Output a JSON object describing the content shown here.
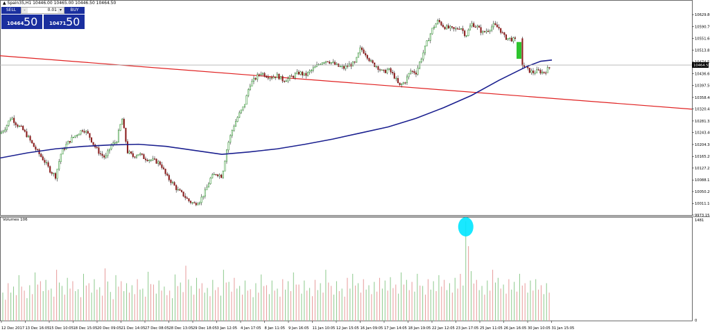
{
  "window_title": "▲ Spain35,H1  10446.00 10465.00 10446.50 10464.50",
  "trade_panel": {
    "sell_label": "SELL",
    "buy_label": "BUY",
    "lot": "0.01",
    "bid_small": "10464",
    "bid_big": "50",
    "ask_small": "10471",
    "ask_big": "50"
  },
  "colors": {
    "bull": "#1d8a1d",
    "bear": "#8a1d1d",
    "ma": "#1a1f8f",
    "trendline": "#e02020",
    "highlight_candle": "#2ec52e",
    "marker": "#00e5ff",
    "price_line": "#b0b0b0",
    "vol_up": "#8cc98c",
    "vol_down": "#e79a9a"
  },
  "chart_data": [
    {
      "type": "candlestick",
      "symbol": "Spain35",
      "timeframe": "H1",
      "ylim": [
        9973.15,
        10668.5
      ],
      "y_ticks": [
        "10629.80",
        "10590.70",
        "10551.60",
        "10513.85",
        "10474.55",
        "10436.60",
        "10397.50",
        "10358.40",
        "10320.45",
        "10281.35",
        "10243.40",
        "10204.30",
        "10165.20",
        "10127.25",
        "10088.15",
        "10050.20",
        "10011.10",
        "9973.15"
      ],
      "current_price": 10464.5,
      "current_price_label": "10464.50",
      "x_labels": [
        "12 Dec 2017",
        "13 Dec 16:05",
        "15 Dec 10:05",
        "18 Dec 15:05",
        "20 Dec 09:05",
        "21 Dec 14:05",
        "27 Dec 08:05",
        "28 Dec 13:05",
        "29 Dec 18:05",
        "3 Jan 12:05",
        "4 Jan 17:05",
        "8 Jan 11:05",
        "9 Jan 16:05",
        "11 Jan 10:05",
        "12 Jan 15:05",
        "16 Jan 09:05",
        "17 Jan 14:05",
        "18 Jan 19:05",
        "22 Jan 12:05",
        "23 Jan 17:05",
        "25 Jan 11:05",
        "26 Jan 16:05",
        "30 Jan 10:05",
        "31 Jan 15:05"
      ],
      "close_path": [
        [
          0,
          10240
        ],
        [
          8,
          10260
        ],
        [
          16,
          10295
        ],
        [
          24,
          10270
        ],
        [
          32,
          10255
        ],
        [
          40,
          10230
        ],
        [
          48,
          10200
        ],
        [
          56,
          10175
        ],
        [
          64,
          10150
        ],
        [
          72,
          10120
        ],
        [
          80,
          10100
        ],
        [
          88,
          10175
        ],
        [
          96,
          10205
        ],
        [
          104,
          10225
        ],
        [
          112,
          10240
        ],
        [
          120,
          10255
        ],
        [
          128,
          10235
        ],
        [
          136,
          10200
        ],
        [
          144,
          10175
        ],
        [
          152,
          10160
        ],
        [
          160,
          10200
        ],
        [
          168,
          10215
        ],
        [
          176,
          10290
        ],
        [
          184,
          10180
        ],
        [
          192,
          10165
        ],
        [
          200,
          10175
        ],
        [
          208,
          10160
        ],
        [
          216,
          10155
        ],
        [
          224,
          10150
        ],
        [
          232,
          10140
        ],
        [
          240,
          10100
        ],
        [
          248,
          10080
        ],
        [
          256,
          10055
        ],
        [
          264,
          10040
        ],
        [
          272,
          10020
        ],
        [
          280,
          10010
        ],
        [
          288,
          10020
        ],
        [
          296,
          10050
        ],
        [
          304,
          10095
        ],
        [
          312,
          10110
        ],
        [
          320,
          10100
        ],
        [
          328,
          10200
        ],
        [
          336,
          10260
        ],
        [
          344,
          10300
        ],
        [
          352,
          10330
        ],
        [
          360,
          10400
        ],
        [
          368,
          10420
        ],
        [
          376,
          10440
        ],
        [
          384,
          10430
        ],
        [
          392,
          10425
        ],
        [
          400,
          10430
        ],
        [
          408,
          10415
        ],
        [
          416,
          10420
        ],
        [
          424,
          10430
        ],
        [
          432,
          10440
        ],
        [
          440,
          10430
        ],
        [
          448,
          10445
        ],
        [
          456,
          10460
        ],
        [
          464,
          10475
        ],
        [
          472,
          10480
        ],
        [
          480,
          10470
        ],
        [
          488,
          10460
        ],
        [
          496,
          10455
        ],
        [
          504,
          10465
        ],
        [
          512,
          10470
        ],
        [
          520,
          10520
        ],
        [
          528,
          10500
        ],
        [
          536,
          10470
        ],
        [
          544,
          10460
        ],
        [
          552,
          10440
        ],
        [
          560,
          10450
        ],
        [
          568,
          10430
        ],
        [
          576,
          10395
        ],
        [
          584,
          10410
        ],
        [
          592,
          10445
        ],
        [
          600,
          10440
        ],
        [
          608,
          10490
        ],
        [
          616,
          10540
        ],
        [
          624,
          10585
        ],
        [
          632,
          10610
        ],
        [
          640,
          10590
        ],
        [
          648,
          10585
        ],
        [
          656,
          10580
        ],
        [
          664,
          10590
        ],
        [
          672,
          10560
        ],
        [
          680,
          10600
        ],
        [
          688,
          10590
        ],
        [
          696,
          10570
        ],
        [
          704,
          10580
        ],
        [
          712,
          10595
        ],
        [
          720,
          10585
        ],
        [
          728,
          10555
        ],
        [
          736,
          10550
        ],
        [
          744,
          10545
        ],
        [
          752,
          10470
        ],
        [
          760,
          10450
        ],
        [
          768,
          10440
        ],
        [
          776,
          10445
        ],
        [
          784,
          10440
        ],
        [
          792,
          10455
        ],
        [
          796,
          10465
        ]
      ],
      "highlight_candle": {
        "open": 10540,
        "close": 10485
      },
      "moving_average": [
        [
          0,
          10160
        ],
        [
          40,
          10177
        ],
        [
          80,
          10190
        ],
        [
          120,
          10198
        ],
        [
          160,
          10203
        ],
        [
          200,
          10205
        ],
        [
          240,
          10198
        ],
        [
          280,
          10185
        ],
        [
          320,
          10172
        ],
        [
          360,
          10180
        ],
        [
          400,
          10190
        ],
        [
          440,
          10205
        ],
        [
          480,
          10222
        ],
        [
          520,
          10242
        ],
        [
          560,
          10262
        ],
        [
          600,
          10290
        ],
        [
          640,
          10325
        ],
        [
          680,
          10365
        ],
        [
          720,
          10415
        ],
        [
          760,
          10460
        ],
        [
          780,
          10477
        ],
        [
          796,
          10481
        ]
      ],
      "trendline": {
        "start": 10495,
        "end": 10320
      }
    },
    {
      "type": "bar",
      "title": "Volumes 106",
      "y_ticks": [
        "1481",
        "0"
      ],
      "ylim": [
        0,
        1481
      ],
      "values": [
        420,
        560,
        510,
        680,
        450,
        530,
        720,
        590,
        610,
        480,
        760,
        520,
        640,
        590,
        470,
        700,
        560,
        620,
        500,
        780,
        430,
        680,
        590,
        560,
        530,
        620,
        480,
        730,
        540,
        600,
        510,
        450,
        690,
        570,
        820,
        520,
        640,
        560,
        490,
        610,
        500,
        760,
        580,
        640,
        520,
        600,
        470,
        560,
        690,
        530,
        600,
        480,
        620,
        590,
        720,
        540,
        600,
        490,
        610,
        560,
        760,
        520,
        590,
        480,
        640,
        700,
        560,
        620,
        530,
        580,
        640,
        600,
        650,
        540,
        720,
        610,
        580,
        700,
        520,
        620,
        590,
        680,
        610,
        560,
        640,
        700,
        1481,
        740,
        610,
        520,
        600,
        760,
        640,
        540,
        620,
        580,
        700,
        560,
        600,
        620,
        530,
        560
      ],
      "marker_bar_index": 86
    }
  ]
}
